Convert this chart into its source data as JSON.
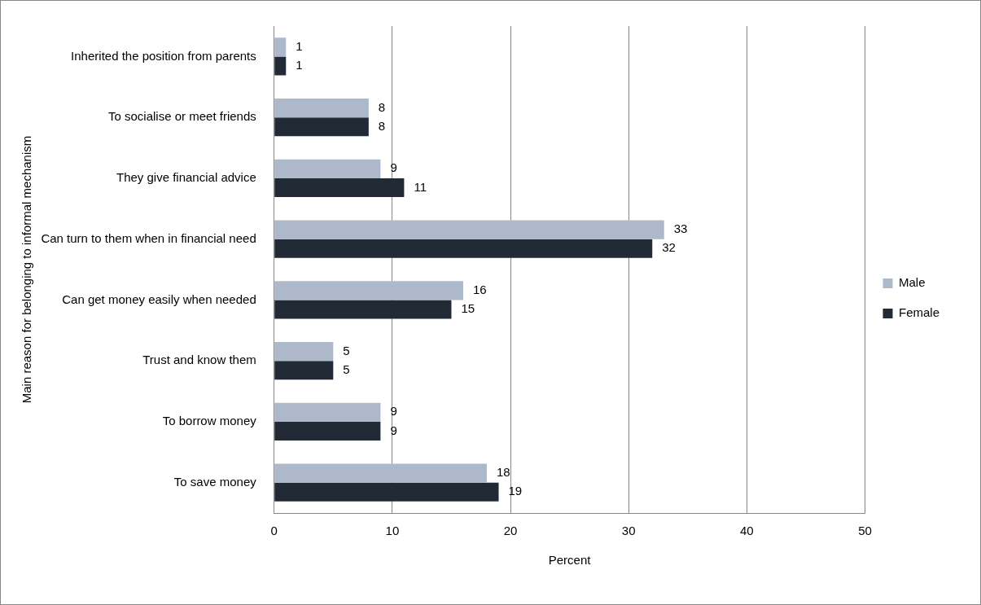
{
  "chart_data": {
    "type": "bar",
    "orientation": "horizontal",
    "xlabel": "Percent",
    "ylabel": "Main reason for belonging to informal mechanism",
    "categories": [
      "Inherited the position from parents",
      "To socialise or meet friends",
      "They give financial advice",
      "Can turn to them when in financial need",
      "Can get money easily when needed",
      "Trust and know them",
      "To borrow money",
      "To save money"
    ],
    "series": [
      {
        "name": "Male",
        "color": "#adb9ca",
        "values": [
          1,
          8,
          9,
          33,
          16,
          5,
          9,
          18
        ]
      },
      {
        "name": "Female",
        "color": "#222a35",
        "values": [
          1,
          8,
          11,
          32,
          15,
          5,
          9,
          19
        ]
      }
    ],
    "xlim": [
      0,
      50
    ],
    "xticks": [
      0,
      10,
      20,
      30,
      40,
      50
    ],
    "grid": "x",
    "legend": "right",
    "data_labels": true
  }
}
